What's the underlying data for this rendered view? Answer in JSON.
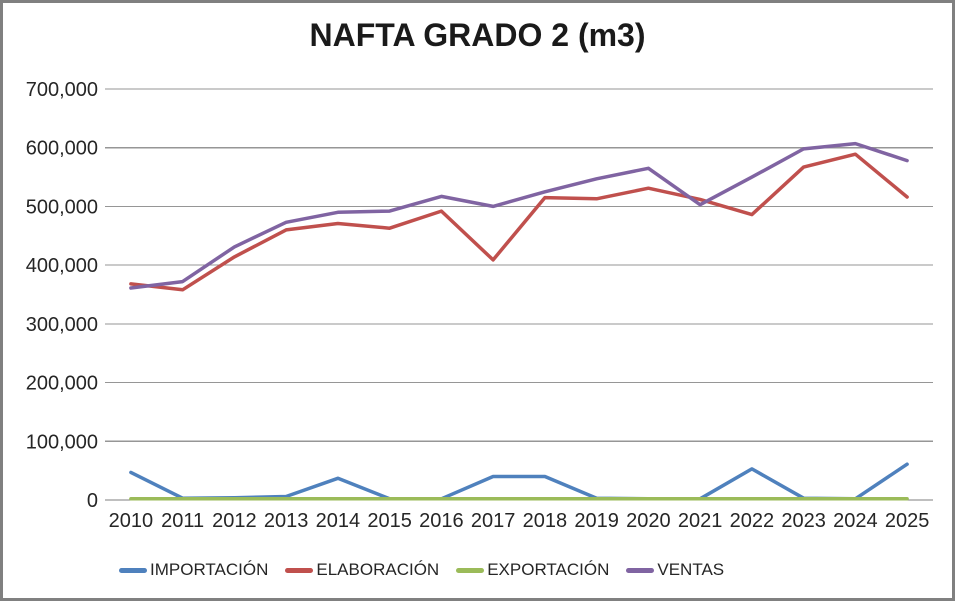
{
  "chart_title": "NAFTA GRADO 2 (m3)",
  "colors": {
    "gridline": "#969696",
    "axis_line": "#7f7f7f",
    "text": "#262626",
    "title_text": "#1a1a1a",
    "frame_border": "#808080",
    "background": "#ffffff",
    "series_blue": "#4F81BD",
    "series_red": "#C0504D",
    "series_green": "#9BBB59",
    "series_purple": "#8064A2"
  },
  "chart_data": {
    "type": "line",
    "title": "NAFTA GRADO 2 (m3)",
    "x": [
      2010,
      2011,
      2012,
      2013,
      2014,
      2015,
      2016,
      2017,
      2018,
      2019,
      2020,
      2021,
      2022,
      2023,
      2024,
      2025
    ],
    "series": [
      {
        "name": "IMPORTACIÓN",
        "color": "#4F81BD",
        "values": [
          47000,
          3000,
          4000,
          6000,
          37000,
          2000,
          2000,
          40000,
          40000,
          3000,
          2000,
          2000,
          53000,
          3000,
          2000,
          61000
        ]
      },
      {
        "name": "ELABORACIÓN",
        "color": "#C0504D",
        "values": [
          368000,
          358000,
          414000,
          460000,
          471000,
          463000,
          492000,
          409000,
          515000,
          513000,
          531000,
          512000,
          486000,
          567000,
          589000,
          516000
        ]
      },
      {
        "name": "EXPORTACIÓN",
        "color": "#9BBB59",
        "values": [
          2000,
          2000,
          2000,
          2000,
          2000,
          2000,
          2000,
          2000,
          2000,
          2000,
          2000,
          2000,
          2000,
          2000,
          2000,
          2000
        ]
      },
      {
        "name": "VENTAS",
        "color": "#8064A2",
        "values": [
          361000,
          372000,
          431000,
          473000,
          490000,
          492000,
          517000,
          500000,
          525000,
          547000,
          565000,
          503000,
          550000,
          598000,
          607000,
          578000
        ]
      }
    ],
    "ylim": [
      0,
      700000
    ],
    "ytick_step": 100000,
    "ytick_labels": [
      "0",
      "100,000",
      "200,000",
      "300,000",
      "400,000",
      "500,000",
      "600,000",
      "700,000"
    ],
    "grid": true,
    "legend_position": "bottom"
  }
}
